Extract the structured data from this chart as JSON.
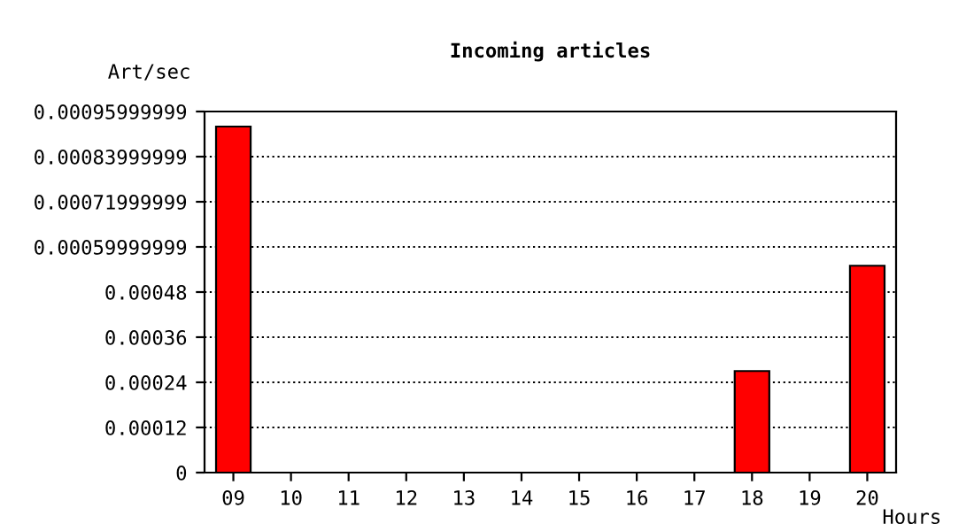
{
  "chart_data": {
    "type": "bar",
    "title": "Incoming articles",
    "xlabel": "Hours",
    "ylabel": "Art/sec",
    "categories": [
      "09",
      "10",
      "11",
      "12",
      "13",
      "14",
      "15",
      "16",
      "17",
      "18",
      "19",
      "20"
    ],
    "values": [
      0.00092,
      0,
      0,
      0,
      0,
      0,
      0,
      0,
      0,
      0.00027,
      0,
      0.00055
    ],
    "color": "#ff0000",
    "ylim": [
      0,
      0.00095999999
    ],
    "yticks": [
      0,
      0.00012,
      0.00024,
      0.00036,
      0.00048,
      0.00059999999,
      0.00071999999,
      0.00083999999,
      0.00095999999
    ],
    "grid": "y",
    "line_style": "dotted"
  }
}
